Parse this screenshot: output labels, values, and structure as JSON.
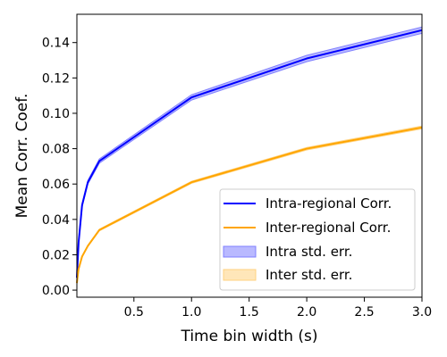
{
  "chart_data": {
    "type": "line",
    "xlabel": "Time bin width (s)",
    "ylabel": "Mean Corr. Coef.",
    "xlim": [
      0.005,
      3.0
    ],
    "ylim": [
      -0.004,
      0.156
    ],
    "xticks": [
      0.5,
      1.0,
      1.5,
      2.0,
      2.5,
      3.0
    ],
    "xtick_labels": [
      "0.5",
      "1.0",
      "1.5",
      "2.0",
      "2.5",
      "3.0"
    ],
    "yticks": [
      0.0,
      0.02,
      0.04,
      0.06,
      0.08,
      0.1,
      0.12,
      0.14
    ],
    "ytick_labels": [
      "0.00",
      "0.02",
      "0.04",
      "0.06",
      "0.08",
      "0.10",
      "0.12",
      "0.14"
    ],
    "grid": false,
    "legend_position": "bottom-right",
    "series": [
      {
        "name": "Intra-regional Corr.",
        "color": "#0000ff",
        "band_label": "Intra std. err.",
        "band_color": "#8080ff",
        "x": [
          0.005,
          0.01,
          0.02,
          0.05,
          0.1,
          0.2,
          1.0,
          2.0,
          3.0
        ],
        "y": [
          0.007,
          0.014,
          0.027,
          0.048,
          0.061,
          0.073,
          0.109,
          0.131,
          0.147
        ],
        "err": [
          0.0005,
          0.0006,
          0.0008,
          0.001,
          0.001,
          0.0012,
          0.0015,
          0.0018,
          0.0018
        ]
      },
      {
        "name": "Inter-regional Corr.",
        "color": "#ffa500",
        "band_label": "Inter std. err.",
        "band_color": "#ffd27f",
        "x": [
          0.005,
          0.01,
          0.02,
          0.05,
          0.1,
          0.2,
          1.0,
          2.0,
          3.0
        ],
        "y": [
          0.004,
          0.007,
          0.012,
          0.019,
          0.025,
          0.034,
          0.061,
          0.08,
          0.092
        ],
        "err": [
          0.0002,
          0.0002,
          0.0003,
          0.0004,
          0.0004,
          0.0005,
          0.0006,
          0.0007,
          0.0008
        ]
      }
    ]
  }
}
